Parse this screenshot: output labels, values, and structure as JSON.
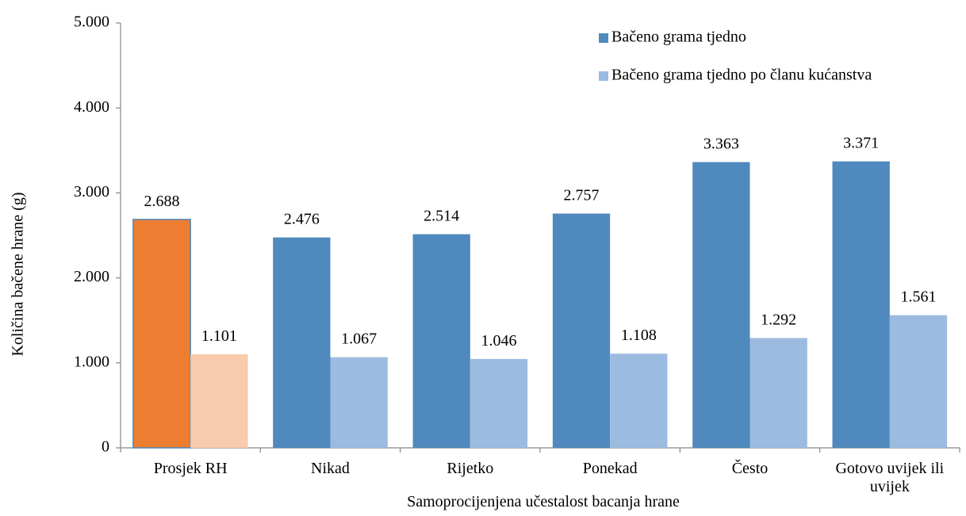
{
  "chart_data": {
    "type": "bar",
    "title": "",
    "xlabel": "Samoprocijenjena učestalost bacanja hrane",
    "ylabel": "Količina bačene hrane (g)",
    "ylim": [
      0,
      5000
    ],
    "yticks": [
      0,
      1000,
      2000,
      3000,
      4000,
      5000
    ],
    "ytick_labels": [
      "0",
      "1.000",
      "2.000",
      "3.000",
      "4.000",
      "5.000"
    ],
    "grid": false,
    "legend_position": "top-right",
    "categories": [
      [
        "Prosjek RH"
      ],
      [
        "Nikad"
      ],
      [
        "Rijetko"
      ],
      [
        "Ponekad"
      ],
      [
        "Često"
      ],
      [
        "Gotovo uvijek ili",
        "uvijek"
      ]
    ],
    "series": [
      {
        "name": "Bačeno grama tjedno",
        "color": "#4f89bd",
        "highlight_color": "#ed7d31",
        "highlight_index": 0,
        "values": [
          2688,
          2476,
          2514,
          2757,
          3363,
          3371
        ],
        "labels": [
          "2.688",
          "2.476",
          "2.514",
          "2.757",
          "3.363",
          "3.371"
        ]
      },
      {
        "name": "Bačeno grama tjedno po članu kućanstva",
        "color": "#9cbbe0",
        "highlight_color": "#f7cbab",
        "highlight_index": 0,
        "values": [
          1101,
          1067,
          1046,
          1108,
          1292,
          1561
        ],
        "labels": [
          "1.101",
          "1.067",
          "1.046",
          "1.108",
          "1.292",
          "1.561"
        ]
      }
    ]
  }
}
